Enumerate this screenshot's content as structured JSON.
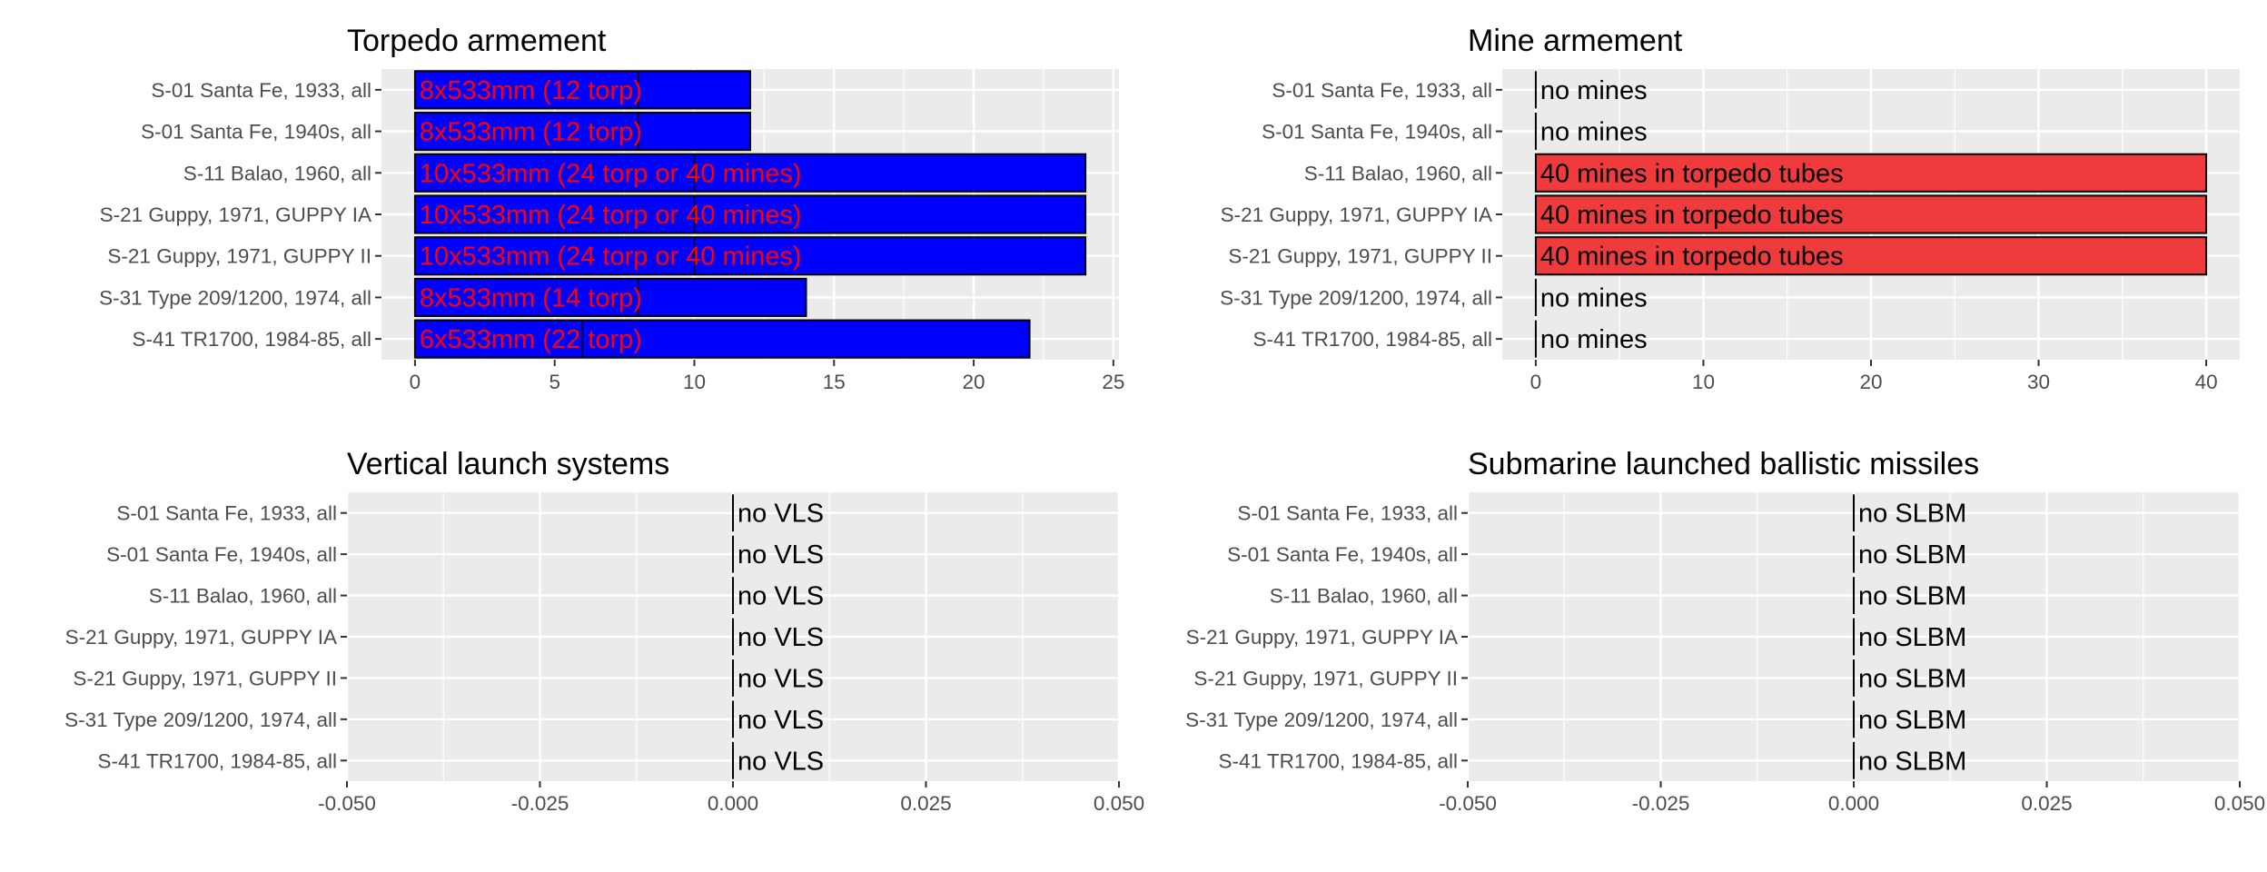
{
  "chart_data": [
    {
      "type": "bar",
      "orientation": "horizontal",
      "title": "Torpedo armement",
      "categories": [
        "S-01 Santa Fe, 1933, all",
        "S-01 Santa Fe, 1940s, all",
        "S-11 Balao, 1960, all",
        "S-21 Guppy, 1971, GUPPY IA",
        "S-21 Guppy, 1971, GUPPY II",
        "S-31 Type 209/1200, 1974, all",
        "S-41 TR1700, 1984-85, all"
      ],
      "values": [
        12,
        12,
        24,
        24,
        24,
        14,
        22
      ],
      "tube_count": [
        8,
        8,
        10,
        10,
        10,
        8,
        6
      ],
      "labels": [
        "8x533mm (12 torp)",
        "8x533mm (12 torp)",
        "10x533mm (24 torp or 40 mines)",
        "10x533mm (24 torp or 40 mines)",
        "10x533mm (24 torp or 40 mines)",
        "8x533mm (14 torp)",
        "6x533mm (22 torp)"
      ],
      "xlim": [
        -1.2,
        25.2
      ],
      "xticks": [
        0,
        5,
        10,
        15,
        20,
        25
      ],
      "tick_labels": [
        "0",
        "5",
        "10",
        "15",
        "20",
        "25"
      ],
      "bar_color": "#0000ff",
      "label_color": "#ff0000",
      "grid": true
    },
    {
      "type": "bar",
      "orientation": "horizontal",
      "title": "Mine armement",
      "categories": [
        "S-01 Santa Fe, 1933, all",
        "S-01 Santa Fe, 1940s, all",
        "S-11 Balao, 1960, all",
        "S-21 Guppy, 1971, GUPPY IA",
        "S-21 Guppy, 1971, GUPPY II",
        "S-31 Type 209/1200, 1974, all",
        "S-41 TR1700, 1984-85, all"
      ],
      "values": [
        0,
        0,
        40,
        40,
        40,
        0,
        0
      ],
      "labels": [
        "no mines",
        "no mines",
        "40 mines in torpedo tubes",
        "40 mines in torpedo tubes",
        "40 mines in torpedo tubes",
        "no mines",
        "no mines"
      ],
      "xlim": [
        -2,
        42
      ],
      "xticks": [
        0,
        10,
        20,
        30,
        40
      ],
      "tick_labels": [
        "0",
        "10",
        "20",
        "30",
        "40"
      ],
      "bar_color": "#ef3b3b",
      "label_color": "#000000",
      "grid": true
    },
    {
      "type": "bar",
      "orientation": "horizontal",
      "title": "Vertical launch systems",
      "categories": [
        "S-01 Santa Fe, 1933, all",
        "S-01 Santa Fe, 1940s, all",
        "S-11 Balao, 1960, all",
        "S-21 Guppy, 1971, GUPPY IA",
        "S-21 Guppy, 1971, GUPPY II",
        "S-31 Type 209/1200, 1974, all",
        "S-41 TR1700, 1984-85, all"
      ],
      "values": [
        0,
        0,
        0,
        0,
        0,
        0,
        0
      ],
      "labels": [
        "no VLS",
        "no VLS",
        "no VLS",
        "no VLS",
        "no VLS",
        "no VLS",
        "no VLS"
      ],
      "xlim": [
        -0.05,
        0.05
      ],
      "xticks": [
        -0.05,
        -0.025,
        0,
        0.025,
        0.05
      ],
      "tick_labels": [
        "-0.050",
        "-0.025",
        "0.000",
        "0.025",
        "0.050"
      ],
      "bar_color": "#808080",
      "label_color": "#000000",
      "grid": true
    },
    {
      "type": "bar",
      "orientation": "horizontal",
      "title": "Submarine launched ballistic missiles",
      "categories": [
        "S-01 Santa Fe, 1933, all",
        "S-01 Santa Fe, 1940s, all",
        "S-11 Balao, 1960, all",
        "S-21 Guppy, 1971, GUPPY IA",
        "S-21 Guppy, 1971, GUPPY II",
        "S-31 Type 209/1200, 1974, all",
        "S-41 TR1700, 1984-85, all"
      ],
      "values": [
        0,
        0,
        0,
        0,
        0,
        0,
        0
      ],
      "labels": [
        "no SLBM",
        "no SLBM",
        "no SLBM",
        "no SLBM",
        "no SLBM",
        "no SLBM",
        "no SLBM"
      ],
      "xlim": [
        -0.05,
        0.05
      ],
      "xticks": [
        -0.05,
        -0.025,
        0,
        0.025,
        0.05
      ],
      "tick_labels": [
        "-0.050",
        "-0.025",
        "0.000",
        "0.025",
        "0.050"
      ],
      "bar_color": "#808080",
      "label_color": "#000000",
      "grid": true
    }
  ],
  "colors": {
    "panel_background": "#ebebeb",
    "grid_major": "#ffffff",
    "bar_outline": "#000000"
  }
}
